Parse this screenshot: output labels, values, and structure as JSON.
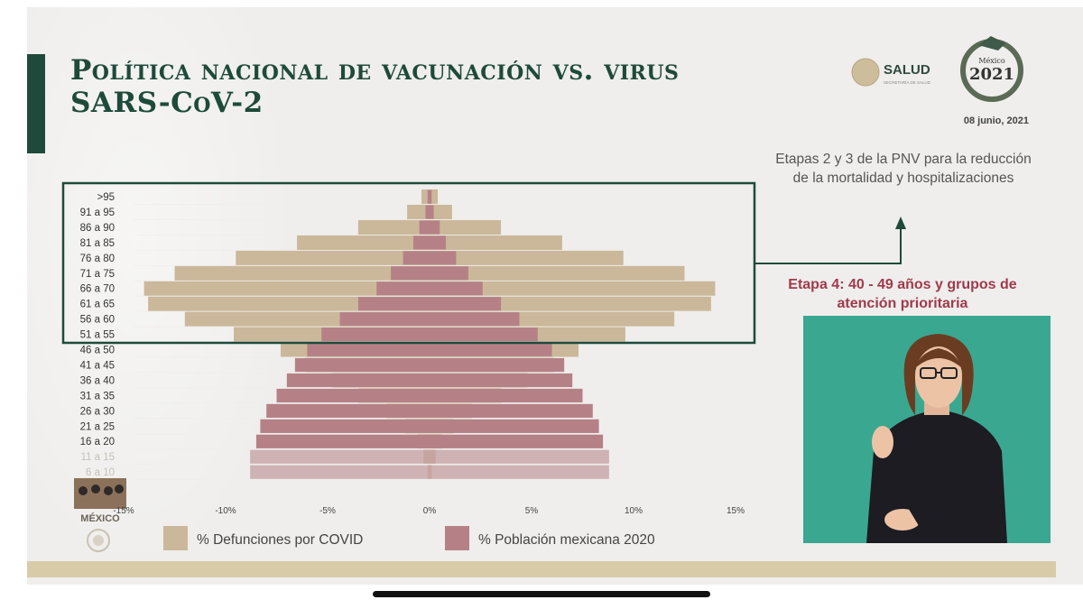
{
  "header": {
    "title_line1": "Política nacional de vacunación vs. virus",
    "title_line2": "SARS-CoV-2",
    "salud_label": "SALUD",
    "salud_sub": "SECRETARÍA DE SALUD",
    "logo_2021_number": "2021",
    "logo_2021_top": "México",
    "date": "08 junio, 2021"
  },
  "notes": {
    "top": "Etapas 2 y 3 de la PNV para la reducción de la mortalidad y hospitalizaciones",
    "stage": "Etapa 4: 40 - 49 años y grupos de atención prioritaria"
  },
  "footer": {
    "gob_label": "MÉXICO"
  },
  "colors": {
    "defunciones": "#cbb89a",
    "poblacion": "#b58186",
    "frame": "#1e4a3c",
    "stage_text": "#a03a4c",
    "interpreter_bg": "#3aa790"
  },
  "icons": {
    "arrow": "arrow-up-icon",
    "seal": "eagle-seal-icon"
  },
  "chart_data": {
    "type": "bar",
    "orientation": "horizontal-pyramid",
    "categories": [
      ">95",
      "91 a 95",
      "86 a 90",
      "81 a 85",
      "76 a 80",
      "71 a 75",
      "66 a 70",
      "61 a 65",
      "56 a 60",
      "51 a 55",
      "46 a 50",
      "41 a 45",
      "36 a 40",
      "31 a 35",
      "26 a 30",
      "21 a 25",
      "16 a 20",
      "11 a 15",
      "6 a 10"
    ],
    "series": [
      {
        "name": "% Defunciones por COVID",
        "color": "#cbb89a",
        "values": [
          0.4,
          1.1,
          3.5,
          6.5,
          9.5,
          12.5,
          14.0,
          13.8,
          12.0,
          9.6,
          7.3,
          6.1,
          4.8,
          3.5,
          2.1,
          1.2,
          0.6,
          0.3,
          0.1
        ]
      },
      {
        "name": "% Población mexicana 2020",
        "color": "#b58186",
        "values": [
          0.1,
          0.2,
          0.5,
          0.8,
          1.3,
          1.9,
          2.6,
          3.5,
          4.4,
          5.3,
          6.0,
          6.6,
          7.0,
          7.5,
          8.0,
          8.3,
          8.5,
          8.8,
          8.8
        ]
      }
    ],
    "x_ticks": [
      "-15%",
      "-10%",
      "-5%",
      "0%",
      "5%",
      "10%",
      "15%"
    ],
    "xlim": [
      -15,
      15
    ],
    "grid": false,
    "legend": "bottom",
    "highlight": {
      "label": "Etapas 2 y 3",
      "from": ">95",
      "to": "51 a 55"
    }
  }
}
